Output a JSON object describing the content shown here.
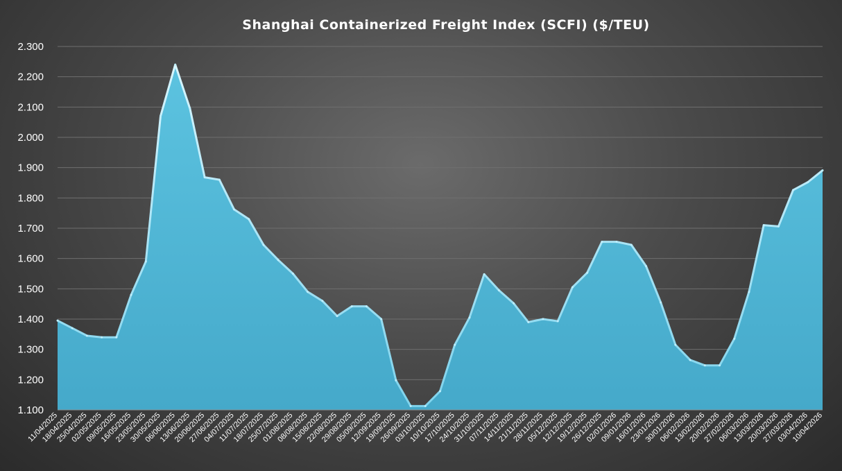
{
  "chart_data": {
    "type": "area",
    "title": "Shanghai Containerized Freight Index (SCFI) ($/TEU)",
    "xlabel": "",
    "ylabel": "",
    "ylim": [
      1100,
      2300
    ],
    "yticks": [
      1100,
      1200,
      1300,
      1400,
      1500,
      1600,
      1700,
      1800,
      1900,
      2000,
      2100,
      2200,
      2300
    ],
    "ytick_labels": [
      "1.100",
      "1.200",
      "1.300",
      "1.400",
      "1.500",
      "1.600",
      "1.700",
      "1.800",
      "1.900",
      "2.000",
      "2.100",
      "2.200",
      "2.300"
    ],
    "grid": true,
    "legend": "none",
    "fill_color": "#4fb3d3",
    "categories": [
      "11/04/2025",
      "18/04/2025",
      "25/04/2025",
      "02/05/2025",
      "09/05/2025",
      "16/05/2025",
      "23/05/2025",
      "30/05/2025",
      "06/06/2025",
      "13/06/2025",
      "20/06/2025",
      "27/06/2025",
      "04/07/2025",
      "11/07/2025",
      "18/07/2025",
      "25/07/2025",
      "01/08/2025",
      "08/08/2025",
      "15/08/2025",
      "22/08/2025",
      "29/08/2025",
      "05/09/2025",
      "12/09/2025",
      "19/09/2025",
      "26/09/2025",
      "03/10/2025",
      "10/10/2025",
      "17/10/2025",
      "24/10/2025",
      "31/10/2025",
      "07/11/2025",
      "14/11/2025",
      "21/11/2025",
      "28/11/2025",
      "05/12/2025",
      "12/12/2025",
      "19/12/2025",
      "26/12/2025",
      "02/01/2026",
      "09/01/2026",
      "16/01/2026",
      "23/01/2026",
      "30/01/2026",
      "06/02/2026",
      "13/02/2026",
      "20/02/2026",
      "27/02/2026",
      "06/03/2026",
      "13/03/2026",
      "20/03/2026",
      "27/03/2026",
      "03/04/2026",
      "10/04/2026"
    ],
    "series": [
      {
        "values": [
          1395,
          1370,
          1345,
          1340,
          1340,
          1480,
          1590,
          2070,
          2240,
          2095,
          1868,
          1860,
          1762,
          1730,
          1645,
          1595,
          1550,
          1490,
          1460,
          1410,
          1442,
          1442,
          1400,
          1198,
          1113,
          1113,
          1162,
          1315,
          1405,
          1548,
          1495,
          1452,
          1390,
          1400,
          1393,
          1505,
          1553,
          1655,
          1655,
          1645,
          1575,
          1455,
          1315,
          1265,
          1247,
          1247,
          1335,
          1490,
          1710,
          1706,
          1826,
          1852,
          1891
        ]
      }
    ]
  }
}
